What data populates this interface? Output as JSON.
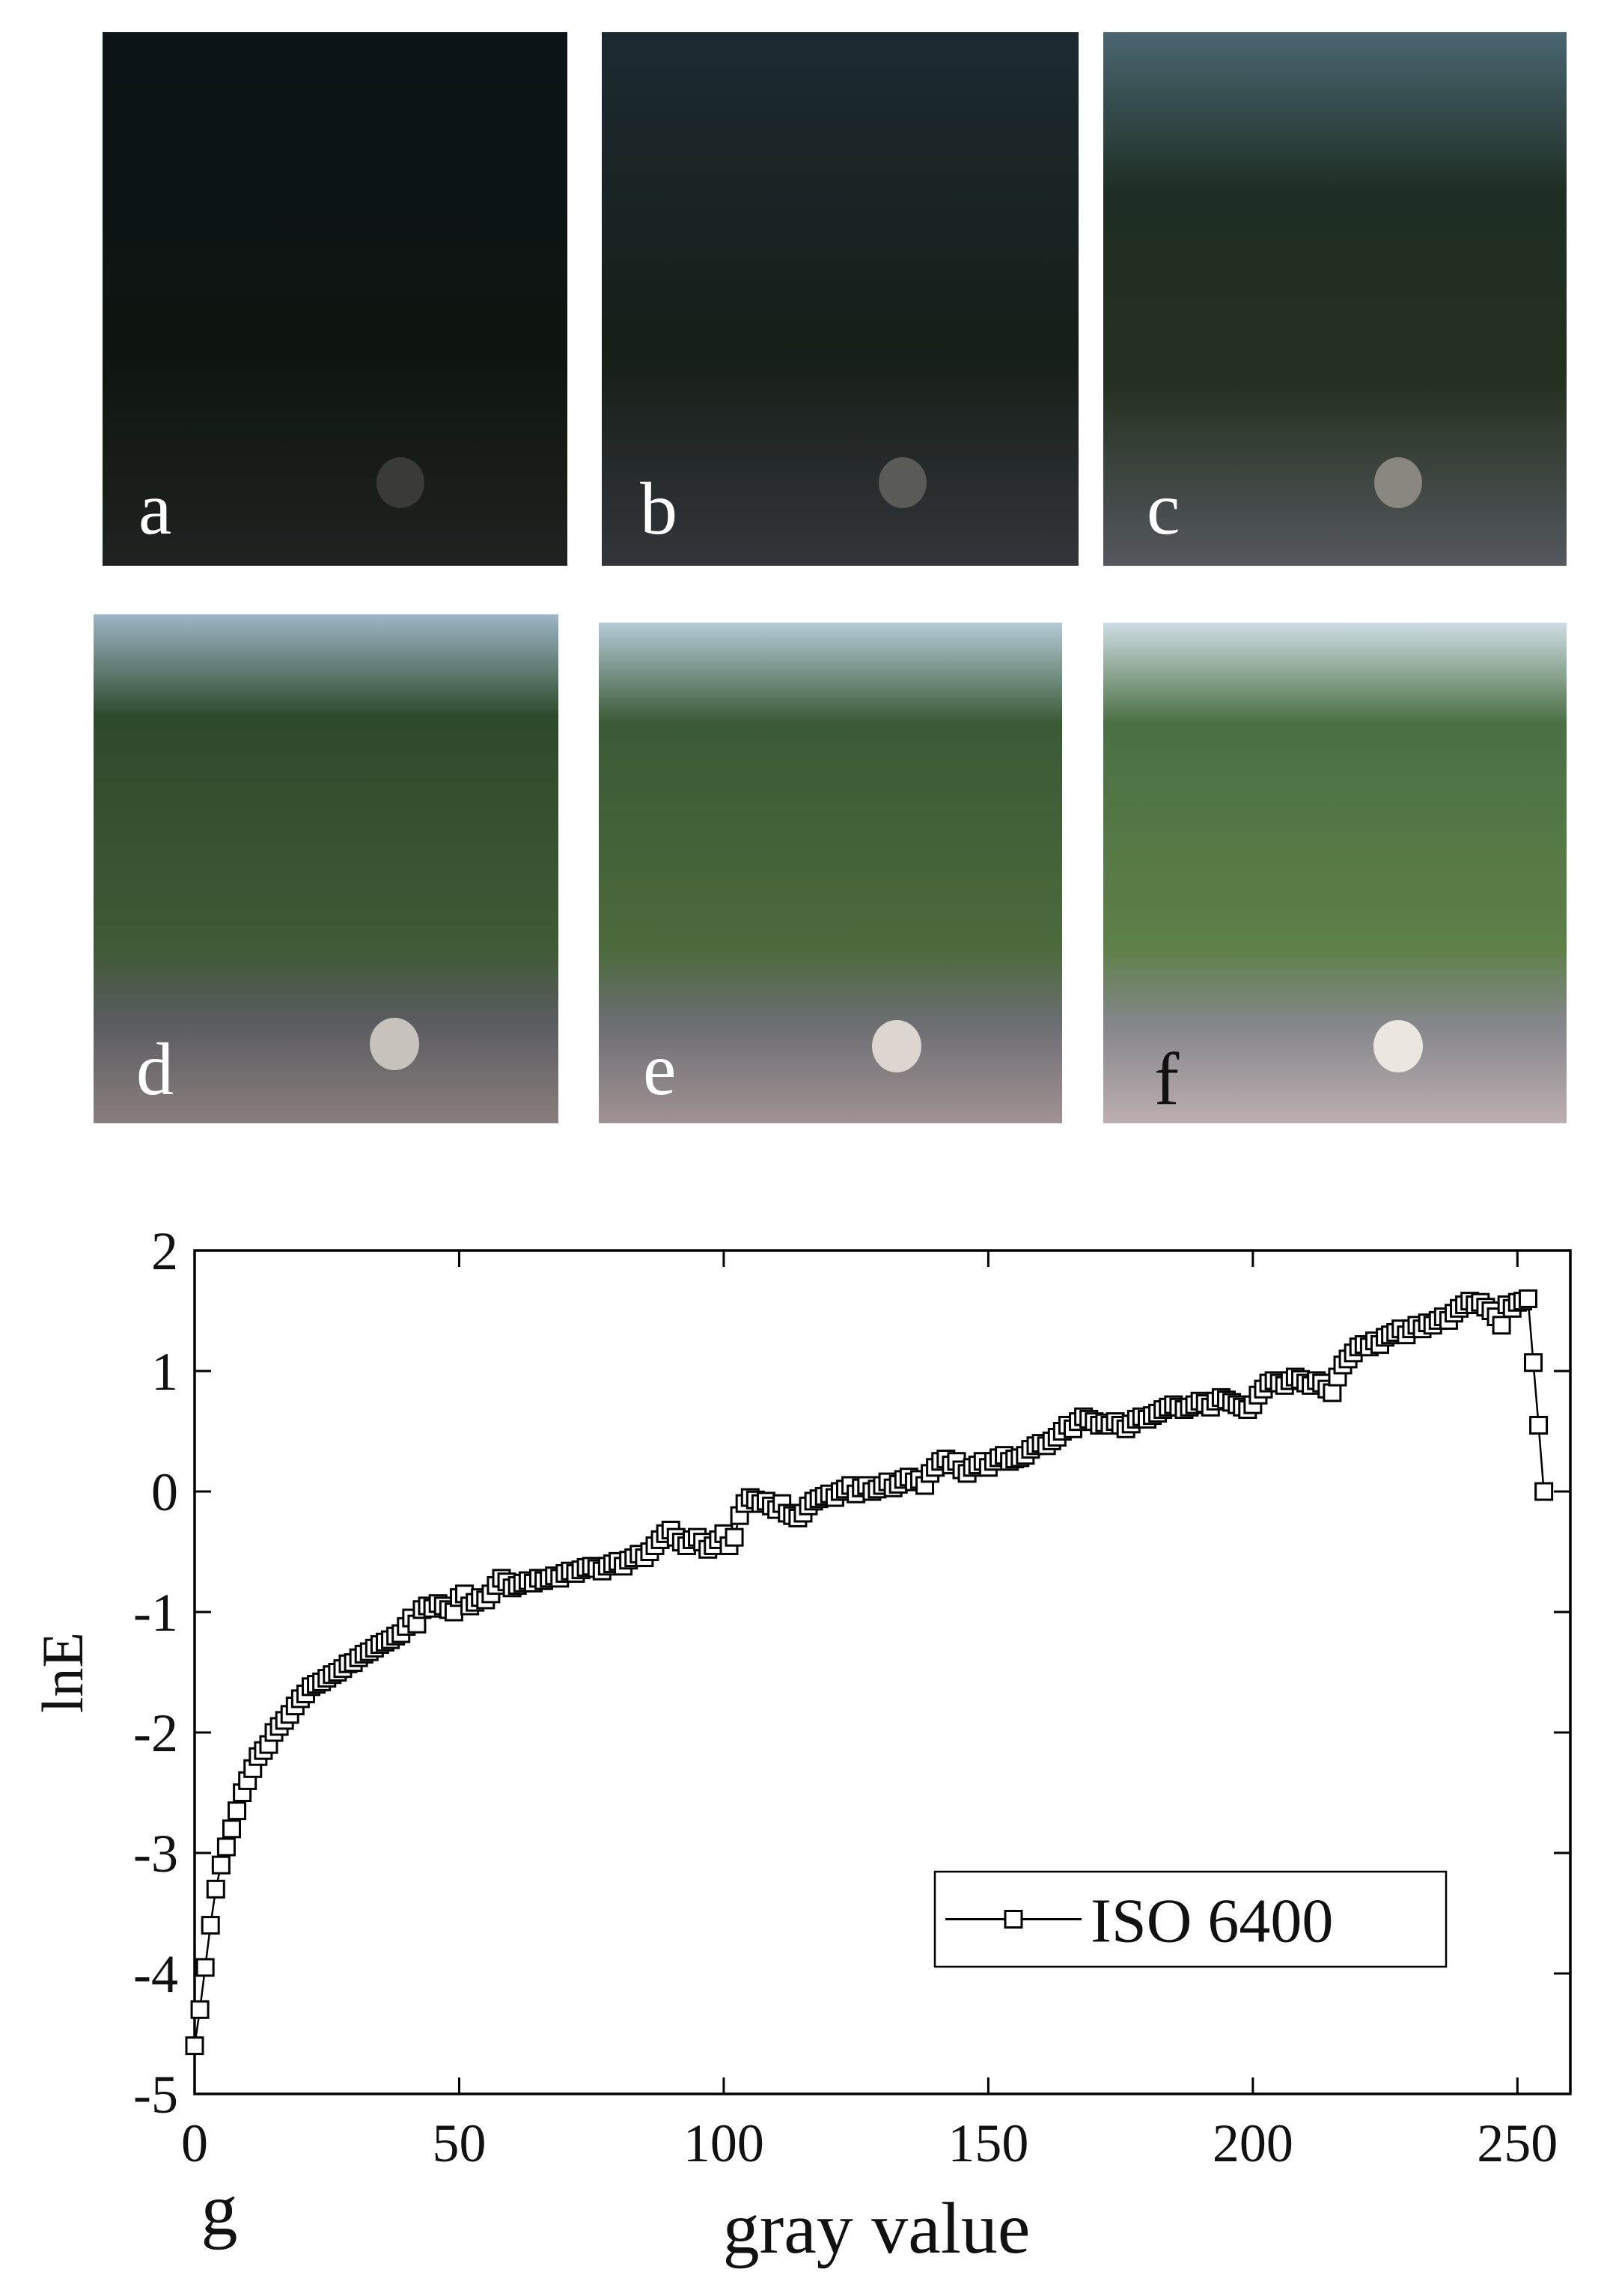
{
  "panels": [
    "a",
    "b",
    "c",
    "d",
    "e",
    "f"
  ],
  "chart_data": {
    "type": "line",
    "xlabel": "gray value",
    "ylabel": "lnE",
    "annotation": "g",
    "xlim": [
      0,
      260
    ],
    "ylim": [
      -5,
      2
    ],
    "xticks": [
      0,
      50,
      100,
      150,
      200,
      250
    ],
    "yticks": [
      -5,
      -4,
      -3,
      -2,
      -1,
      0,
      1,
      2
    ],
    "legend": "lower right",
    "x": [
      0,
      1,
      2,
      3,
      4,
      5,
      6,
      7,
      8,
      9,
      10,
      11,
      12,
      13,
      14,
      15,
      16,
      17,
      18,
      19,
      20,
      21,
      22,
      23,
      24,
      25,
      26,
      27,
      28,
      29,
      30,
      31,
      32,
      33,
      34,
      35,
      36,
      37,
      38,
      39,
      40,
      41,
      42,
      43,
      44,
      45,
      46,
      47,
      48,
      49,
      50,
      51,
      52,
      53,
      54,
      55,
      56,
      57,
      58,
      59,
      60,
      61,
      62,
      63,
      64,
      65,
      66,
      67,
      68,
      69,
      70,
      71,
      72,
      73,
      74,
      75,
      76,
      77,
      78,
      79,
      80,
      81,
      82,
      83,
      84,
      85,
      86,
      87,
      88,
      89,
      90,
      91,
      92,
      93,
      94,
      95,
      96,
      97,
      98,
      99,
      100,
      101,
      102,
      103,
      104,
      105,
      106,
      107,
      108,
      109,
      110,
      111,
      112,
      113,
      114,
      115,
      116,
      117,
      118,
      119,
      120,
      121,
      122,
      123,
      124,
      125,
      126,
      127,
      128,
      129,
      130,
      131,
      132,
      133,
      134,
      135,
      136,
      137,
      138,
      139,
      140,
      141,
      142,
      143,
      144,
      145,
      146,
      147,
      148,
      149,
      150,
      151,
      152,
      153,
      154,
      155,
      156,
      157,
      158,
      159,
      160,
      161,
      162,
      163,
      164,
      165,
      166,
      167,
      168,
      169,
      170,
      171,
      172,
      173,
      174,
      175,
      176,
      177,
      178,
      179,
      180,
      181,
      182,
      183,
      184,
      185,
      186,
      187,
      188,
      189,
      190,
      191,
      192,
      193,
      194,
      195,
      196,
      197,
      198,
      199,
      200,
      201,
      202,
      203,
      204,
      205,
      206,
      207,
      208,
      209,
      210,
      211,
      212,
      213,
      214,
      215,
      216,
      217,
      218,
      219,
      220,
      221,
      222,
      223,
      224,
      225,
      226,
      227,
      228,
      229,
      230,
      231,
      232,
      233,
      234,
      235,
      236,
      237,
      238,
      239,
      240,
      241,
      242,
      243,
      244,
      245,
      246,
      247,
      248,
      249,
      250,
      251,
      252,
      253,
      254,
      255
    ],
    "series": [
      {
        "name": "ISO 6400",
        "color": "#000000",
        "marker": "square",
        "values": [
          -4.6,
          -4.3,
          -3.95,
          -3.6,
          -3.3,
          -3.1,
          -2.95,
          -2.8,
          -2.65,
          -2.5,
          -2.4,
          -2.3,
          -2.2,
          -2.15,
          -2.1,
          -2.0,
          -1.95,
          -1.9,
          -1.85,
          -1.78,
          -1.72,
          -1.68,
          -1.62,
          -1.6,
          -1.58,
          -1.55,
          -1.52,
          -1.5,
          -1.47,
          -1.43,
          -1.42,
          -1.38,
          -1.35,
          -1.33,
          -1.3,
          -1.27,
          -1.25,
          -1.23,
          -1.2,
          -1.18,
          -1.12,
          -1.05,
          -1.1,
          -0.98,
          -0.95,
          -0.97,
          -0.93,
          -0.95,
          -0.98,
          -1.0,
          -0.88,
          -0.85,
          -0.95,
          -0.92,
          -0.88,
          -0.9,
          -0.85,
          -0.78,
          -0.72,
          -0.75,
          -0.8,
          -0.78,
          -0.76,
          -0.74,
          -0.76,
          -0.72,
          -0.74,
          -0.72,
          -0.7,
          -0.72,
          -0.68,
          -0.66,
          -0.68,
          -0.65,
          -0.63,
          -0.62,
          -0.64,
          -0.66,
          -0.62,
          -0.6,
          -0.58,
          -0.62,
          -0.57,
          -0.55,
          -0.52,
          -0.55,
          -0.5,
          -0.45,
          -0.4,
          -0.35,
          -0.32,
          -0.38,
          -0.42,
          -0.45,
          -0.4,
          -0.38,
          -0.42,
          -0.48,
          -0.45,
          -0.4,
          -0.35,
          -0.45,
          -0.38,
          -0.2,
          -0.1,
          -0.05,
          -0.07,
          -0.1,
          -0.08,
          -0.12,
          -0.15,
          -0.1,
          -0.18,
          -0.2,
          -0.22,
          -0.18,
          -0.12,
          -0.08,
          -0.06,
          -0.04,
          -0.02,
          -0.05,
          0.0,
          0.02,
          0.05,
          -0.02,
          0.03,
          0.05,
          0.0,
          0.02,
          0.05,
          0.08,
          0.03,
          0.06,
          0.1,
          0.12,
          0.08,
          0.1,
          0.05,
          0.15,
          0.2,
          0.25,
          0.27,
          0.22,
          0.25,
          0.18,
          0.15,
          0.2,
          0.22,
          0.25,
          0.2,
          0.25,
          0.28,
          0.3,
          0.25,
          0.27,
          0.28,
          0.3,
          0.35,
          0.38,
          0.4,
          0.38,
          0.42,
          0.45,
          0.5,
          0.55,
          0.52,
          0.58,
          0.62,
          0.6,
          0.58,
          0.55,
          0.57,
          0.55,
          0.58,
          0.55,
          0.52,
          0.56,
          0.6,
          0.62,
          0.6,
          0.63,
          0.65,
          0.68,
          0.7,
          0.72,
          0.7,
          0.68,
          0.7,
          0.72,
          0.75,
          0.73,
          0.7,
          0.75,
          0.78,
          0.76,
          0.74,
          0.72,
          0.7,
          0.68,
          0.72,
          0.8,
          0.85,
          0.9,
          0.92,
          0.9,
          0.88,
          0.92,
          0.95,
          0.93,
          0.9,
          0.88,
          0.92,
          0.9,
          0.85,
          0.82,
          0.95,
          1.05,
          1.1,
          1.15,
          1.2,
          1.22,
          1.2,
          1.25,
          1.22,
          1.28,
          1.3,
          1.32,
          1.35,
          1.3,
          1.35,
          1.38,
          1.35,
          1.4,
          1.38,
          1.42,
          1.45,
          1.42,
          1.48,
          1.52,
          1.55,
          1.58,
          1.55,
          1.57,
          1.53,
          1.5,
          1.45,
          1.38,
          1.55,
          1.52,
          1.57,
          1.58,
          1.6,
          1.07,
          0.55,
          0.0
        ]
      }
    ]
  }
}
